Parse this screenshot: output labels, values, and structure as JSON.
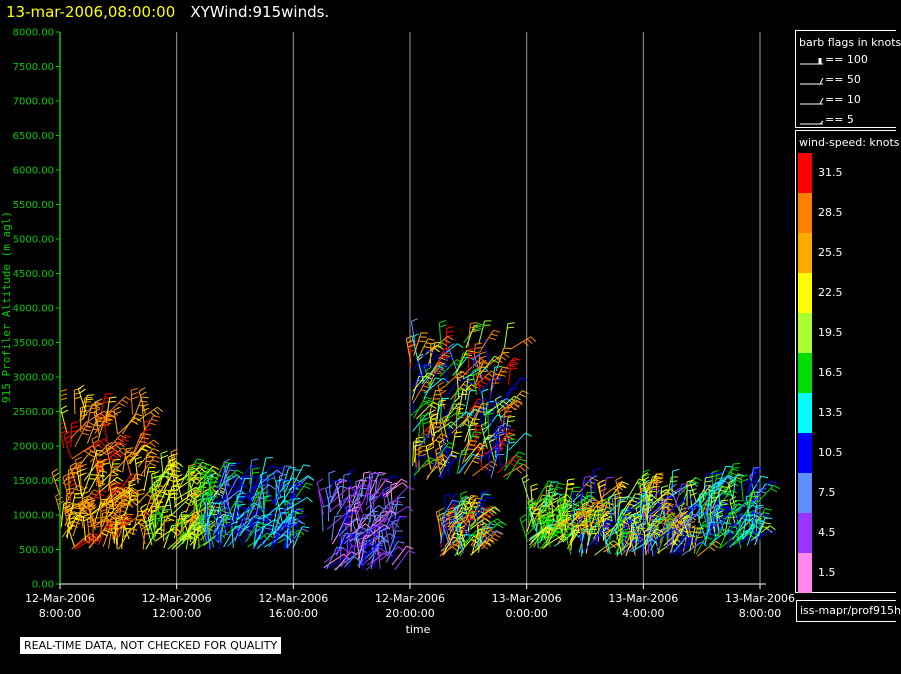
{
  "header": {
    "date": "13-mar-2006,08:00:00",
    "title": "XYWind:915winds."
  },
  "quality_note": "REAL-TIME DATA, NOT CHECKED FOR QUALITY",
  "source": "iss-mapr/prof915h",
  "legend": {
    "flags_title": "barb flags in knots",
    "flags": [
      "== 100",
      "== 50",
      "== 10",
      "== 5"
    ],
    "speed_title": "wind-speed: knots",
    "speed_levels": [
      {
        "label": "31.5",
        "color": "#ff0000"
      },
      {
        "label": "28.5",
        "color": "#ff7f00"
      },
      {
        "label": "25.5",
        "color": "#ffaa00"
      },
      {
        "label": "22.5",
        "color": "#ffff00"
      },
      {
        "label": "19.5",
        "color": "#aaff33"
      },
      {
        "label": "16.5",
        "color": "#00dd00"
      },
      {
        "label": "13.5",
        "color": "#00ffff"
      },
      {
        "label": "10.5",
        "color": "#0000ff"
      },
      {
        "label": "7.5",
        "color": "#5f8fff"
      },
      {
        "label": "4.5",
        "color": "#9933ff"
      },
      {
        "label": "1.5",
        "color": "#ff88ee"
      }
    ]
  },
  "chart_data": {
    "type": "scatter",
    "title": "XYWind:915winds.",
    "xlabel": "time",
    "ylabel": "915 Profiler Altitude (m agl)",
    "ylim": [
      0,
      8000
    ],
    "grid": "vertical lines at time ticks",
    "yticks": [
      "0.00",
      "500.00",
      "1000.00",
      "1500.00",
      "2000.00",
      "2500.00",
      "3000.00",
      "3500.00",
      "4000.00",
      "4500.00",
      "5000.00",
      "5500.00",
      "6000.00",
      "6500.00",
      "7000.00",
      "7500.00",
      "8000.00"
    ],
    "xticks": [
      {
        "date": "12-Mar-2006",
        "time": "8:00:00"
      },
      {
        "date": "12-Mar-2006",
        "time": "12:00:00"
      },
      {
        "date": "12-Mar-2006",
        "time": "16:00:00"
      },
      {
        "date": "12-Mar-2006",
        "time": "20:00:00"
      },
      {
        "date": "13-Mar-2006",
        "time": "0:00:00"
      },
      {
        "date": "13-Mar-2006",
        "time": "4:00:00"
      },
      {
        "date": "13-Mar-2006",
        "time": "8:00:00"
      }
    ],
    "clusters": [
      {
        "time_start": "12-Mar-2006 8:00",
        "time_end": "12-Mar-2006 11:00",
        "alt_min": 500,
        "alt_max": 2500,
        "speed_knots": [
          22.5,
          31.5
        ]
      },
      {
        "time_start": "12-Mar-2006 11:00",
        "time_end": "12-Mar-2006 13:00",
        "alt_min": 500,
        "alt_max": 1600,
        "speed_knots": [
          16.5,
          25.5
        ]
      },
      {
        "time_start": "12-Mar-2006 13:00",
        "time_end": "12-Mar-2006 16:00",
        "alt_min": 500,
        "alt_max": 1500,
        "speed_knots": [
          7.5,
          16.5
        ]
      },
      {
        "time_start": "12-Mar-2006 17:00",
        "time_end": "12-Mar-2006 19:30",
        "alt_min": 200,
        "alt_max": 1300,
        "speed_knots": [
          1.5,
          10.5
        ]
      },
      {
        "time_start": "12-Mar-2006 20:00",
        "time_end": "12-Mar-2006 23:30",
        "alt_min": 1500,
        "alt_max": 3500,
        "speed_knots": [
          7.5,
          31.5
        ]
      },
      {
        "time_start": "12-Mar-2006 21:00",
        "time_end": "12-Mar-2006 22:30",
        "alt_min": 400,
        "alt_max": 1000,
        "speed_knots": [
          4.5,
          31.5
        ]
      },
      {
        "time_start": "13-Mar-2006 0:00",
        "time_end": "13-Mar-2006 1:30",
        "alt_min": 500,
        "alt_max": 1200,
        "speed_knots": [
          13.5,
          25.5
        ]
      },
      {
        "time_start": "13-Mar-2006 1:30",
        "time_end": "13-Mar-2006 6:00",
        "alt_min": 400,
        "alt_max": 1300,
        "speed_knots": [
          4.5,
          28.5
        ]
      },
      {
        "time_start": "13-Mar-2006 6:00",
        "time_end": "13-Mar-2006 8:00",
        "alt_min": 500,
        "alt_max": 1400,
        "speed_knots": [
          7.5,
          19.5
        ]
      }
    ]
  }
}
